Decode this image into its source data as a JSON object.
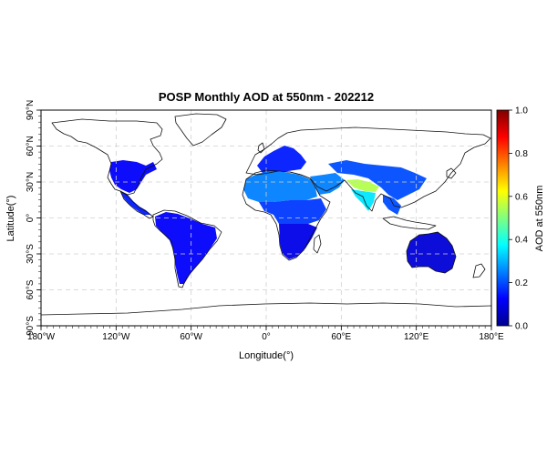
{
  "title": "POSP Monthly AOD at 550nm - 202212",
  "x_axis": {
    "label": "Longitude(°)",
    "range": [
      -180,
      180
    ],
    "ticks": [
      {
        "value": -180,
        "label": "180°W"
      },
      {
        "value": -120,
        "label": "120°W"
      },
      {
        "value": -60,
        "label": "60°W"
      },
      {
        "value": 0,
        "label": "0°"
      },
      {
        "value": 60,
        "label": "60°E"
      },
      {
        "value": 120,
        "label": "120°E"
      },
      {
        "value": 180,
        "label": "180°E"
      }
    ]
  },
  "y_axis": {
    "label": "Latitude(°)",
    "range": [
      -90,
      90
    ],
    "ticks": [
      {
        "value": 90,
        "label": "90°N"
      },
      {
        "value": 60,
        "label": "60°N"
      },
      {
        "value": 30,
        "label": "30°N"
      },
      {
        "value": 0,
        "label": "0°"
      },
      {
        "value": -30,
        "label": "30°S"
      },
      {
        "value": -60,
        "label": "60°S"
      },
      {
        "value": -90,
        "label": "90°S"
      }
    ]
  },
  "colorbar": {
    "label": "AOD at 550nm",
    "range": [
      0.0,
      1.0
    ],
    "ticks": [
      "0.0",
      "0.2",
      "0.4",
      "0.6",
      "0.8",
      "1.0"
    ],
    "colormap": "jet",
    "colors": [
      "#00008f",
      "#0000ff",
      "#0080ff",
      "#00ffff",
      "#80ff80",
      "#ffff00",
      "#ff8000",
      "#ff0000",
      "#800000"
    ]
  },
  "grid": true,
  "map": {
    "projection": "equirectangular",
    "coastline_color": "#111111",
    "aod_regions": [
      {
        "name": "North America",
        "level": 0.12
      },
      {
        "name": "Central America",
        "level": 0.15
      },
      {
        "name": "South America",
        "level": 0.12
      },
      {
        "name": "Europe",
        "level": 0.15
      },
      {
        "name": "Sahara and Sahel",
        "level": 0.25
      },
      {
        "name": "Central Africa",
        "level": 0.18
      },
      {
        "name": "Southern Africa",
        "level": 0.1
      },
      {
        "name": "Middle East",
        "level": 0.25
      },
      {
        "name": "Indo-Gangetic Plain",
        "level": 0.55
      },
      {
        "name": "India",
        "level": 0.35
      },
      {
        "name": "East Asia",
        "level": 0.2
      },
      {
        "name": "Southeast Asia",
        "level": 0.2
      },
      {
        "name": "Australia",
        "level": 0.08
      }
    ]
  }
}
